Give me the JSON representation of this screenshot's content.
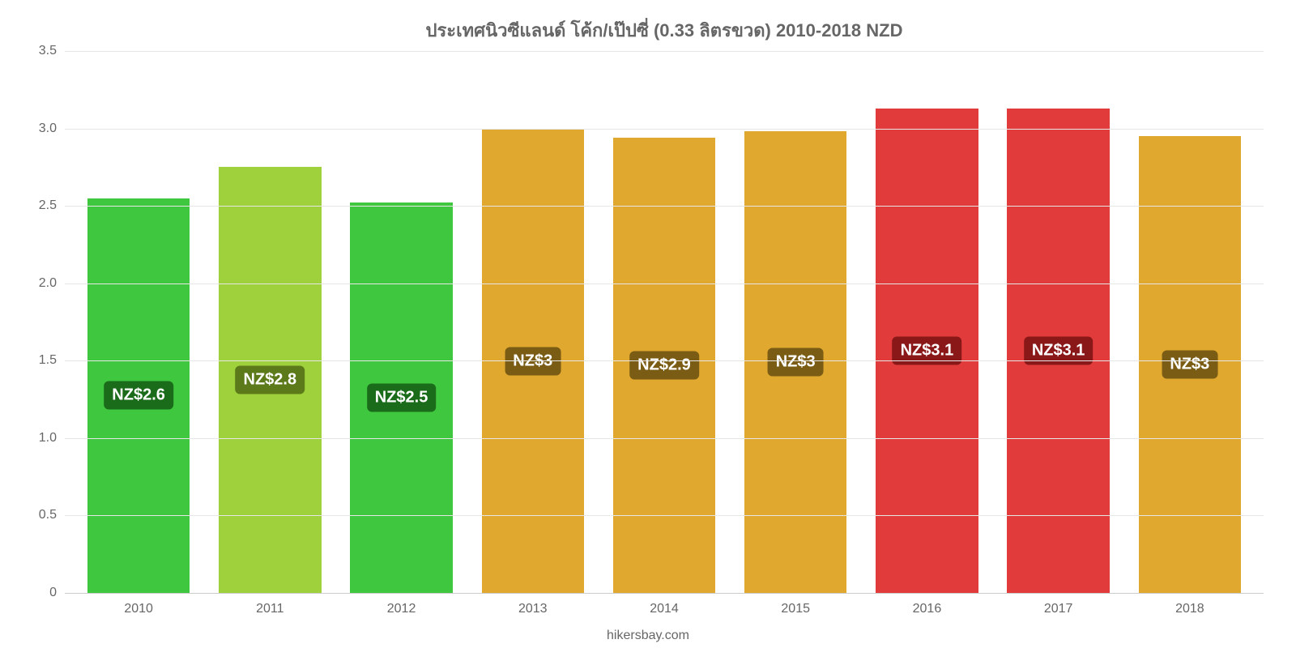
{
  "chart": {
    "type": "bar",
    "title": "ประเทศนิวซีแลนด์ โค้ก/เป๊ปซี่ (0.33 ลิตรขวด) 2010-2018 NZD",
    "title_fontsize": 22,
    "title_color": "#666666",
    "background_color": "#ffffff",
    "grid_color": "#e6e6e6",
    "axis_color": "#cccccc",
    "label_color": "#666666",
    "label_fontsize": 16,
    "yaxis": {
      "min": 0,
      "max": 3.5,
      "ticks": [
        0,
        0.5,
        1.0,
        1.5,
        2.0,
        2.5,
        3.0,
        3.5
      ],
      "tick_labels": [
        "0",
        "0.5",
        "1.0",
        "1.5",
        "2.0",
        "2.5",
        "3.0",
        "3.5"
      ]
    },
    "bar_width_pct": 78,
    "value_badge_fontsize": 20,
    "value_badge_text_color": "#ffffff",
    "data": [
      {
        "category": "2010",
        "value": 2.55,
        "label": "NZ$2.6",
        "bar_color": "#3fc73f",
        "badge_bg": "#1a6b1a"
      },
      {
        "category": "2011",
        "value": 2.75,
        "label": "NZ$2.8",
        "bar_color": "#9ed13b",
        "badge_bg": "#5c7a1a"
      },
      {
        "category": "2012",
        "value": 2.52,
        "label": "NZ$2.5",
        "bar_color": "#3fc73f",
        "badge_bg": "#1a6b1a"
      },
      {
        "category": "2013",
        "value": 2.99,
        "label": "NZ$3",
        "bar_color": "#e0a82e",
        "badge_bg": "#7a5c14"
      },
      {
        "category": "2014",
        "value": 2.94,
        "label": "NZ$2.9",
        "bar_color": "#e0a82e",
        "badge_bg": "#7a5c14"
      },
      {
        "category": "2015",
        "value": 2.98,
        "label": "NZ$3",
        "bar_color": "#e0a82e",
        "badge_bg": "#7a5c14"
      },
      {
        "category": "2016",
        "value": 3.13,
        "label": "NZ$3.1",
        "bar_color": "#e23b3b",
        "badge_bg": "#8a1818"
      },
      {
        "category": "2017",
        "value": 3.13,
        "label": "NZ$3.1",
        "bar_color": "#e23b3b",
        "badge_bg": "#8a1818"
      },
      {
        "category": "2018",
        "value": 2.95,
        "label": "NZ$3",
        "bar_color": "#e0a82e",
        "badge_bg": "#7a5c14"
      }
    ],
    "footer": "hikersbay.com"
  }
}
